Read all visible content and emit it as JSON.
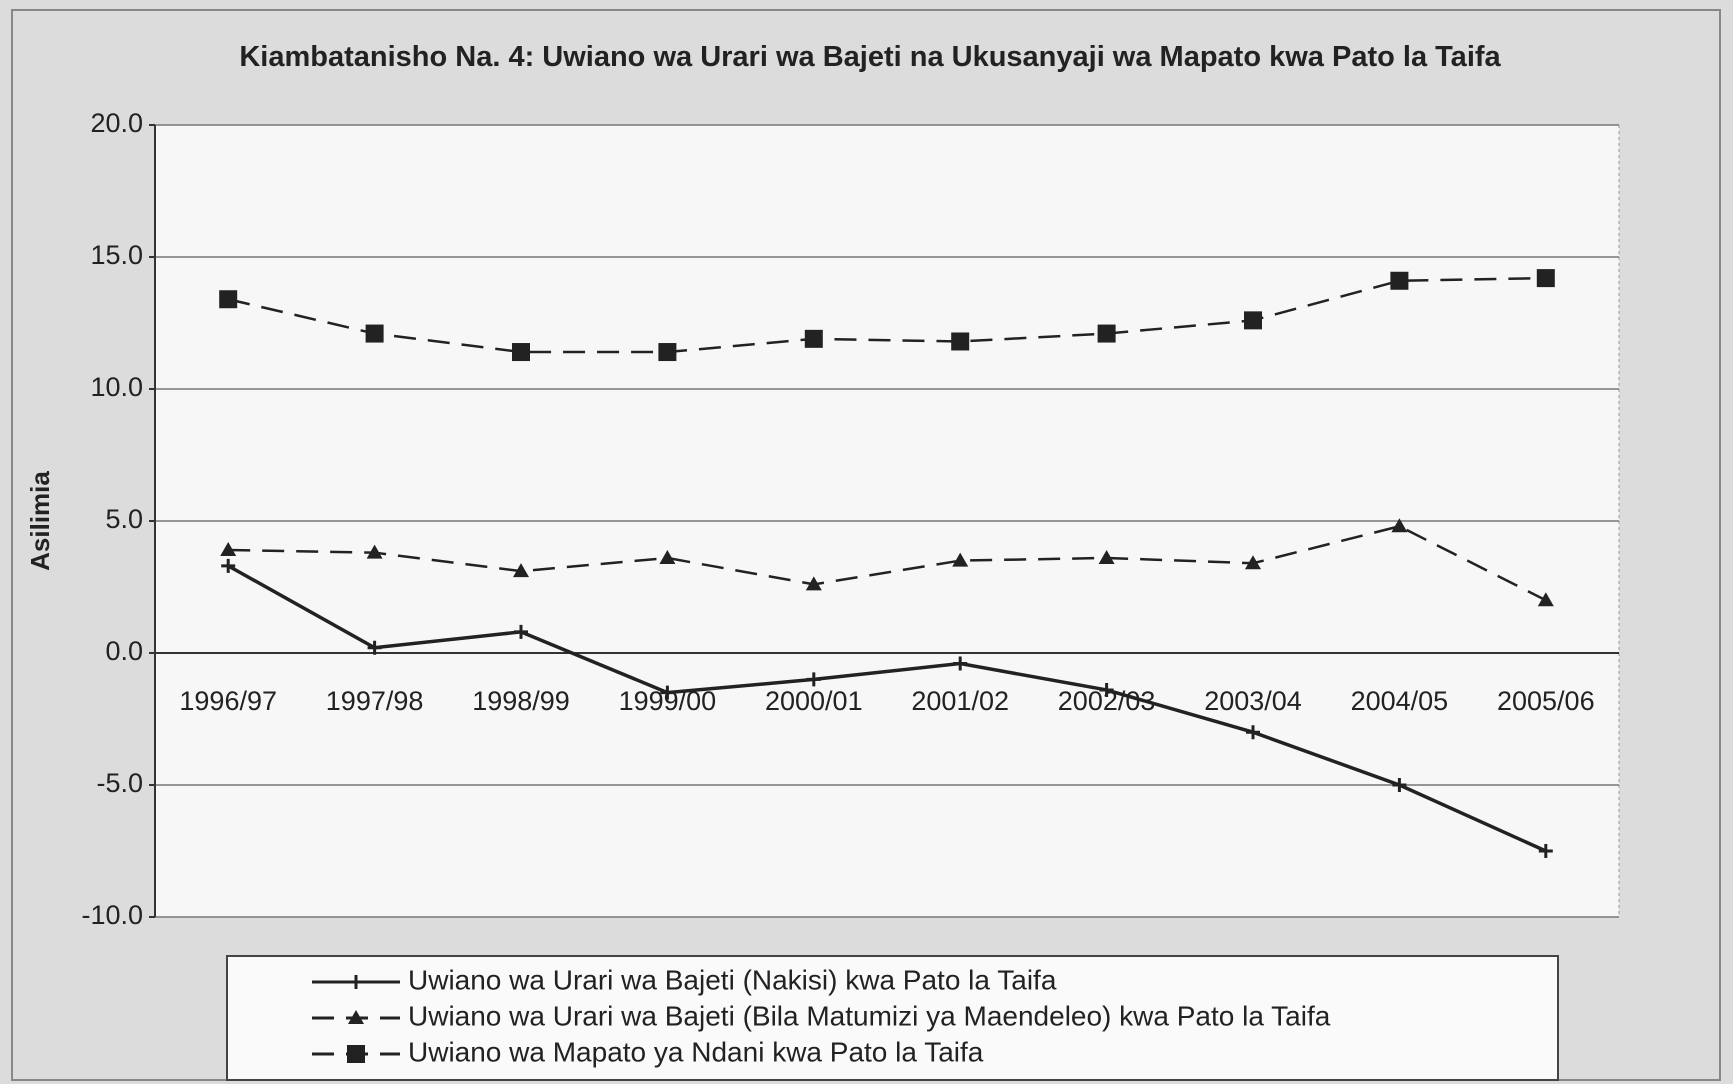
{
  "chart_data": {
    "type": "line",
    "title": "Kiambatanisho Na. 4: Uwiano wa Urari wa Bajeti na Ukusanyaji wa Mapato kwa Pato la Taifa",
    "y_label": "Asilimia",
    "categories": [
      "1996/97",
      "1997/98",
      "1998/99",
      "1999/00",
      "2000/01",
      "2001/02",
      "2002/03",
      "2003/04",
      "2004/05",
      "2005/06"
    ],
    "series": [
      {
        "name": "Uwiano wa Urari wa Bajeti (Nakisi) kwa Pato la Taifa",
        "color": "#222222",
        "dash": "solid",
        "marker": "plus",
        "values": [
          3.3,
          0.2,
          0.8,
          -1.5,
          -1.0,
          -0.4,
          -1.4,
          -3.0,
          -5.0,
          -7.5
        ]
      },
      {
        "name": "Uwiano wa Urari wa Bajeti (Bila Matumizi ya Maendeleo) kwa Pato la Taifa",
        "color": "#222222",
        "dash": "dashed",
        "marker": "triangle",
        "values": [
          3.9,
          3.8,
          3.1,
          3.6,
          2.6,
          3.5,
          3.6,
          3.4,
          4.8,
          2.0
        ]
      },
      {
        "name": "Uwiano wa Mapato ya Ndani kwa Pato la Taifa",
        "color": "#222222",
        "dash": "dashed",
        "marker": "square",
        "values": [
          13.4,
          12.1,
          11.4,
          11.4,
          11.9,
          11.8,
          12.1,
          12.6,
          14.1,
          14.2
        ]
      }
    ],
    "ylim": [
      -10,
      20
    ],
    "yticks": [
      {
        "value": -10,
        "label": "-10.0"
      },
      {
        "value": -5,
        "label": "-5.0"
      },
      {
        "value": 0,
        "label": "0.0"
      },
      {
        "value": 5,
        "label": "5.0"
      },
      {
        "value": 10,
        "label": "10.0"
      },
      {
        "value": 15,
        "label": "15.0"
      },
      {
        "value": 20,
        "label": "20.0"
      }
    ],
    "grid": true,
    "legend": "bottom"
  }
}
